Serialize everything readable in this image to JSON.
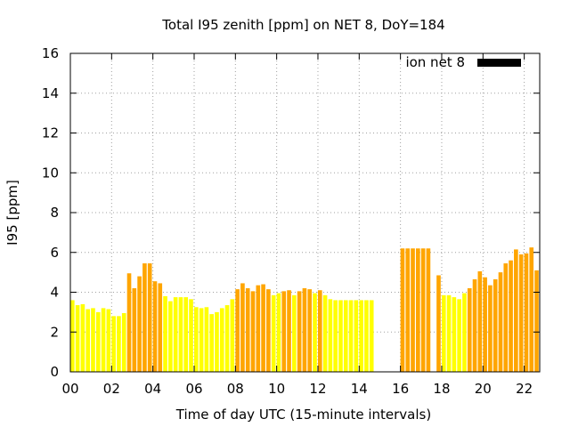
{
  "chart_data": {
    "type": "bar",
    "title": "Total I95 zenith [ppm] on NET 8, DoY=184",
    "xlabel": "Time of day UTC (15-minute intervals)",
    "ylabel": "I95 [ppm]",
    "xlim": [
      0,
      22.75
    ],
    "ylim": [
      0,
      16
    ],
    "x_ticks": [
      0,
      2,
      4,
      6,
      8,
      10,
      12,
      14,
      16,
      18,
      20,
      22
    ],
    "x_tick_labels": [
      "00",
      "02",
      "04",
      "06",
      "08",
      "10",
      "12",
      "14",
      "16",
      "18",
      "20",
      "22"
    ],
    "y_ticks": [
      0,
      2,
      4,
      6,
      8,
      10,
      12,
      14,
      16
    ],
    "y_tick_labels": [
      "0",
      "2",
      "4",
      "6",
      "8",
      "10",
      "12",
      "14",
      "16"
    ],
    "grid": true,
    "legend": {
      "label": "ion net 8",
      "color": "#000000",
      "placement": "top-right"
    },
    "colors": {
      "low": "#ffff00",
      "high": "#ffa500"
    },
    "bar_width_hours": 0.2,
    "bars": [
      {
        "x": 0.0,
        "y": 3.6,
        "level": "low"
      },
      {
        "x": 0.25,
        "y": 3.35,
        "level": "low"
      },
      {
        "x": 0.5,
        "y": 3.4,
        "level": "low"
      },
      {
        "x": 0.75,
        "y": 3.15,
        "level": "low"
      },
      {
        "x": 1.0,
        "y": 3.2,
        "level": "low"
      },
      {
        "x": 1.25,
        "y": 3.0,
        "level": "low"
      },
      {
        "x": 1.5,
        "y": 3.2,
        "level": "low"
      },
      {
        "x": 1.75,
        "y": 3.15,
        "level": "low"
      },
      {
        "x": 2.0,
        "y": 2.8,
        "level": "low"
      },
      {
        "x": 2.25,
        "y": 2.8,
        "level": "low"
      },
      {
        "x": 2.5,
        "y": 2.95,
        "level": "low"
      },
      {
        "x": 2.75,
        "y": 4.95,
        "level": "high"
      },
      {
        "x": 3.0,
        "y": 4.2,
        "level": "high"
      },
      {
        "x": 3.25,
        "y": 4.8,
        "level": "high"
      },
      {
        "x": 3.5,
        "y": 5.45,
        "level": "high"
      },
      {
        "x": 3.75,
        "y": 5.45,
        "level": "high"
      },
      {
        "x": 4.0,
        "y": 4.55,
        "level": "high"
      },
      {
        "x": 4.25,
        "y": 4.45,
        "level": "high"
      },
      {
        "x": 4.5,
        "y": 3.8,
        "level": "low"
      },
      {
        "x": 4.75,
        "y": 3.55,
        "level": "low"
      },
      {
        "x": 5.0,
        "y": 3.75,
        "level": "low"
      },
      {
        "x": 5.25,
        "y": 3.75,
        "level": "low"
      },
      {
        "x": 5.5,
        "y": 3.75,
        "level": "low"
      },
      {
        "x": 5.75,
        "y": 3.65,
        "level": "low"
      },
      {
        "x": 6.0,
        "y": 3.25,
        "level": "low"
      },
      {
        "x": 6.25,
        "y": 3.2,
        "level": "low"
      },
      {
        "x": 6.5,
        "y": 3.25,
        "level": "low"
      },
      {
        "x": 6.75,
        "y": 2.9,
        "level": "low"
      },
      {
        "x": 7.0,
        "y": 3.0,
        "level": "low"
      },
      {
        "x": 7.25,
        "y": 3.2,
        "level": "low"
      },
      {
        "x": 7.5,
        "y": 3.35,
        "level": "low"
      },
      {
        "x": 7.75,
        "y": 3.65,
        "level": "low"
      },
      {
        "x": 8.0,
        "y": 4.15,
        "level": "high"
      },
      {
        "x": 8.25,
        "y": 4.45,
        "level": "high"
      },
      {
        "x": 8.5,
        "y": 4.2,
        "level": "high"
      },
      {
        "x": 8.75,
        "y": 4.05,
        "level": "high"
      },
      {
        "x": 9.0,
        "y": 4.35,
        "level": "high"
      },
      {
        "x": 9.25,
        "y": 4.4,
        "level": "high"
      },
      {
        "x": 9.5,
        "y": 4.15,
        "level": "high"
      },
      {
        "x": 9.75,
        "y": 3.85,
        "level": "low"
      },
      {
        "x": 10.0,
        "y": 3.95,
        "level": "low"
      },
      {
        "x": 10.25,
        "y": 4.05,
        "level": "high"
      },
      {
        "x": 10.5,
        "y": 4.1,
        "level": "high"
      },
      {
        "x": 10.75,
        "y": 3.85,
        "level": "low"
      },
      {
        "x": 11.0,
        "y": 4.05,
        "level": "high"
      },
      {
        "x": 11.25,
        "y": 4.2,
        "level": "high"
      },
      {
        "x": 11.5,
        "y": 4.15,
        "level": "high"
      },
      {
        "x": 11.75,
        "y": 3.95,
        "level": "low"
      },
      {
        "x": 12.0,
        "y": 4.1,
        "level": "high"
      },
      {
        "x": 12.25,
        "y": 3.85,
        "level": "low"
      },
      {
        "x": 12.5,
        "y": 3.65,
        "level": "low"
      },
      {
        "x": 12.75,
        "y": 3.6,
        "level": "low"
      },
      {
        "x": 13.0,
        "y": 3.6,
        "level": "low"
      },
      {
        "x": 13.25,
        "y": 3.6,
        "level": "low"
      },
      {
        "x": 13.5,
        "y": 3.6,
        "level": "low"
      },
      {
        "x": 13.75,
        "y": 3.6,
        "level": "low"
      },
      {
        "x": 14.0,
        "y": 3.6,
        "level": "low"
      },
      {
        "x": 14.25,
        "y": 3.6,
        "level": "low"
      },
      {
        "x": 14.5,
        "y": 3.6,
        "level": "low"
      },
      {
        "x": 16.0,
        "y": 6.2,
        "level": "high"
      },
      {
        "x": 16.25,
        "y": 6.2,
        "level": "high"
      },
      {
        "x": 16.5,
        "y": 6.2,
        "level": "high"
      },
      {
        "x": 16.75,
        "y": 6.2,
        "level": "high"
      },
      {
        "x": 17.0,
        "y": 6.2,
        "level": "high"
      },
      {
        "x": 17.25,
        "y": 6.2,
        "level": "high"
      },
      {
        "x": 17.75,
        "y": 4.85,
        "level": "high"
      },
      {
        "x": 18.0,
        "y": 3.85,
        "level": "low"
      },
      {
        "x": 18.25,
        "y": 3.85,
        "level": "low"
      },
      {
        "x": 18.5,
        "y": 3.75,
        "level": "low"
      },
      {
        "x": 18.75,
        "y": 3.65,
        "level": "low"
      },
      {
        "x": 19.0,
        "y": 3.95,
        "level": "low"
      },
      {
        "x": 19.25,
        "y": 4.2,
        "level": "high"
      },
      {
        "x": 19.5,
        "y": 4.65,
        "level": "high"
      },
      {
        "x": 19.75,
        "y": 5.05,
        "level": "high"
      },
      {
        "x": 20.0,
        "y": 4.75,
        "level": "high"
      },
      {
        "x": 20.25,
        "y": 4.35,
        "level": "high"
      },
      {
        "x": 20.5,
        "y": 4.65,
        "level": "high"
      },
      {
        "x": 20.75,
        "y": 5.0,
        "level": "high"
      },
      {
        "x": 21.0,
        "y": 5.45,
        "level": "high"
      },
      {
        "x": 21.25,
        "y": 5.6,
        "level": "high"
      },
      {
        "x": 21.5,
        "y": 6.15,
        "level": "high"
      },
      {
        "x": 21.75,
        "y": 5.9,
        "level": "high"
      },
      {
        "x": 22.0,
        "y": 5.95,
        "level": "high"
      },
      {
        "x": 22.25,
        "y": 6.25,
        "level": "high"
      },
      {
        "x": 22.5,
        "y": 5.1,
        "level": "high"
      }
    ]
  }
}
